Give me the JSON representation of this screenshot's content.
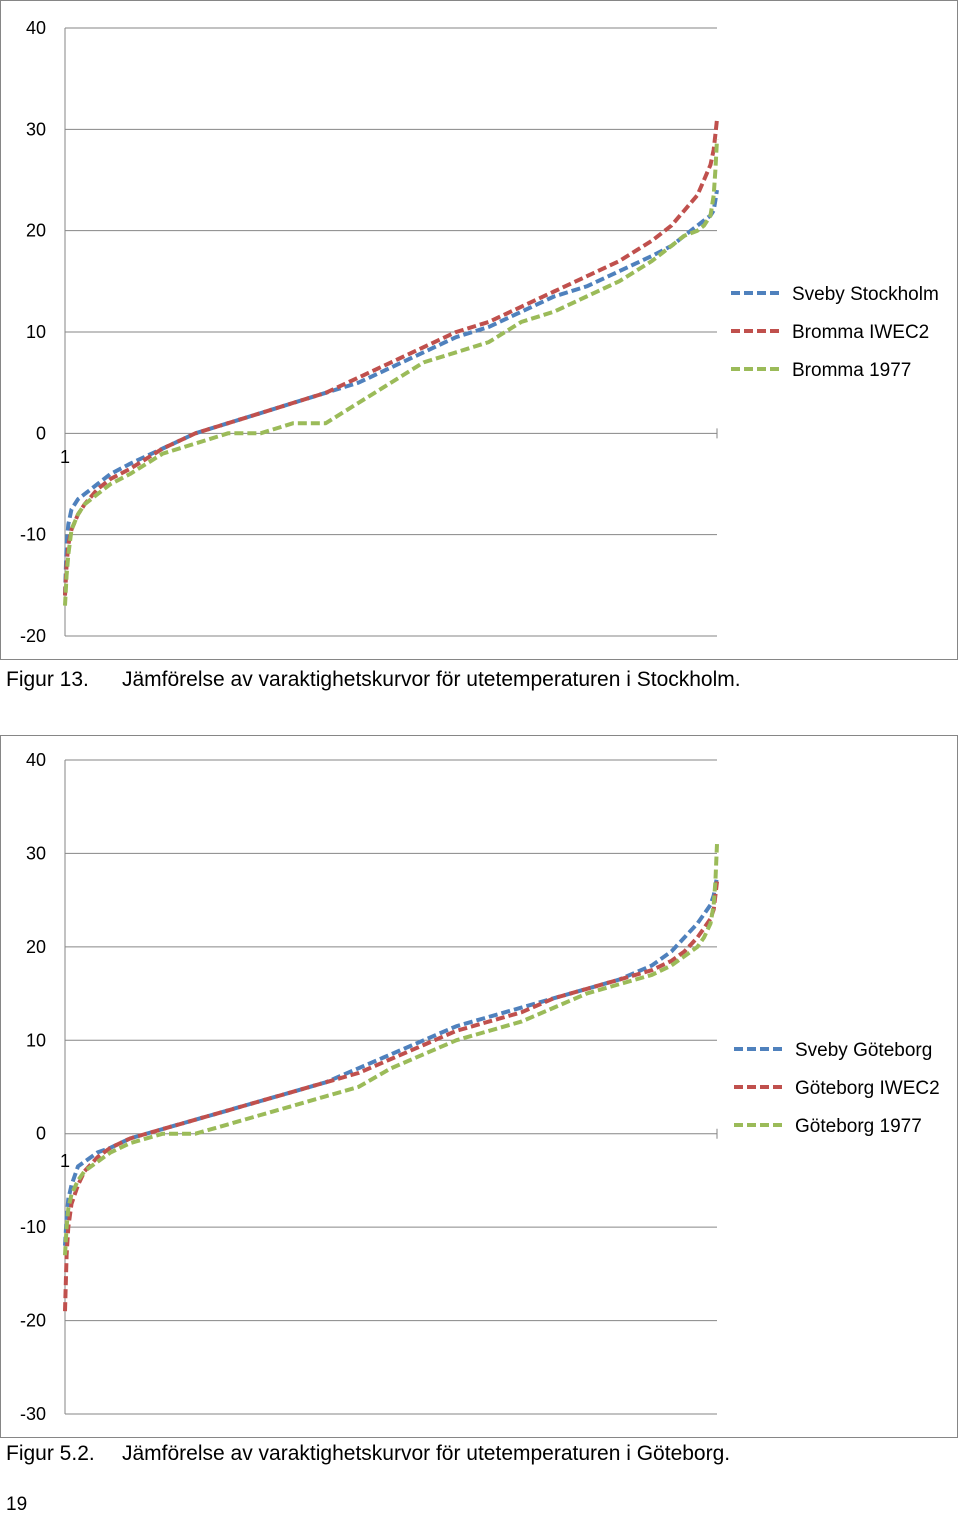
{
  "chart_data": [
    {
      "type": "line",
      "ylim": [
        -20,
        40
      ],
      "yticks": [
        "40",
        "30",
        "20",
        "10",
        "0",
        "-10",
        "-20"
      ],
      "xtick_label": "1",
      "x_percent": [
        0,
        0.25,
        0.5,
        1,
        2,
        3,
        5,
        7,
        10,
        15,
        20,
        25,
        30,
        35,
        40,
        45,
        50,
        55,
        60,
        65,
        70,
        75,
        80,
        85,
        90,
        93,
        95,
        97,
        98,
        99,
        99.5,
        99.75,
        100
      ],
      "series": [
        {
          "name": "Sveby Stockholm",
          "color": "#4F81BD",
          "values": [
            -16,
            -11,
            -9,
            -7.5,
            -6.5,
            -6,
            -5,
            -4,
            -3,
            -1.5,
            0,
            1,
            2,
            3,
            4,
            5,
            6.5,
            8,
            9.5,
            10.5,
            12,
            13.5,
            14.5,
            16,
            17.5,
            18.5,
            19.5,
            20.5,
            21,
            21.5,
            22,
            23,
            24
          ]
        },
        {
          "name": "Bromma IWEC2",
          "color": "#C0504D",
          "values": [
            -16,
            -13,
            -11,
            -9.5,
            -8,
            -7,
            -5.5,
            -4.5,
            -3.5,
            -1.5,
            0,
            1,
            2,
            3,
            4,
            5.5,
            7,
            8.5,
            10,
            11,
            12.5,
            14,
            15.5,
            17,
            19,
            20.5,
            22,
            23.5,
            25,
            26.5,
            28,
            29.5,
            31
          ]
        },
        {
          "name": "Bromma 1977",
          "color": "#9BBB59",
          "values": [
            -17,
            -14,
            -12,
            -9.5,
            -8,
            -7,
            -6,
            -5,
            -4,
            -2,
            -1,
            0,
            0,
            1,
            1,
            3,
            5,
            7,
            8,
            9,
            11,
            12,
            13.5,
            15,
            17,
            18.5,
            19.5,
            20,
            20.5,
            21.5,
            23.5,
            26,
            29
          ]
        }
      ]
    },
    {
      "type": "line",
      "ylim": [
        -30,
        40
      ],
      "yticks": [
        "40",
        "30",
        "20",
        "10",
        "0",
        "-10",
        "-20",
        "-30"
      ],
      "xtick_label": "1",
      "x_percent": [
        0,
        0.25,
        0.5,
        1,
        2,
        3,
        5,
        7,
        10,
        15,
        20,
        25,
        30,
        35,
        40,
        45,
        50,
        55,
        60,
        65,
        70,
        75,
        80,
        85,
        90,
        93,
        95,
        97,
        98,
        99,
        99.5,
        99.75,
        100
      ],
      "series": [
        {
          "name": "Sveby Göteborg",
          "color": "#4F81BD",
          "values": [
            -12,
            -9,
            -7,
            -5.5,
            -3.5,
            -3,
            -2,
            -1.5,
            -0.5,
            0.5,
            1.5,
            2.5,
            3.5,
            4.5,
            5.5,
            7,
            8.5,
            10,
            11.5,
            12.5,
            13.5,
            14.5,
            15.5,
            16.5,
            18,
            19.5,
            21,
            22.5,
            23.5,
            24.5,
            25.5,
            26.5,
            27.5
          ]
        },
        {
          "name": "Göteborg IWEC2",
          "color": "#C0504D",
          "values": [
            -19,
            -13,
            -10,
            -7.5,
            -5.5,
            -4,
            -2.5,
            -1.5,
            -0.5,
            0.5,
            1.5,
            2.5,
            3.5,
            4.5,
            5.5,
            6.5,
            8,
            9.5,
            11,
            12,
            13,
            14.5,
            15.5,
            16.5,
            17.5,
            18.5,
            19.5,
            21,
            22,
            23,
            24,
            25.5,
            27
          ]
        },
        {
          "name": "Göteborg 1977",
          "color": "#9BBB59",
          "values": [
            -13,
            -10,
            -8,
            -6.5,
            -5,
            -4,
            -3,
            -2,
            -1,
            0,
            0,
            1,
            2,
            3,
            4,
            5,
            7,
            8.5,
            10,
            11,
            12,
            13.5,
            15,
            16,
            17,
            18,
            19,
            20,
            21,
            22.5,
            24.5,
            27,
            31
          ]
        }
      ]
    }
  ],
  "captions": [
    {
      "label": "Figur 13.",
      "text": "Jämförelse av varaktighetskurvor för utetemperaturen i Stockholm."
    },
    {
      "label": "Figur 5.2.",
      "text": "Jämförelse av varaktighetskurvor för utetemperaturen i Göteborg."
    }
  ],
  "page_number": "19"
}
